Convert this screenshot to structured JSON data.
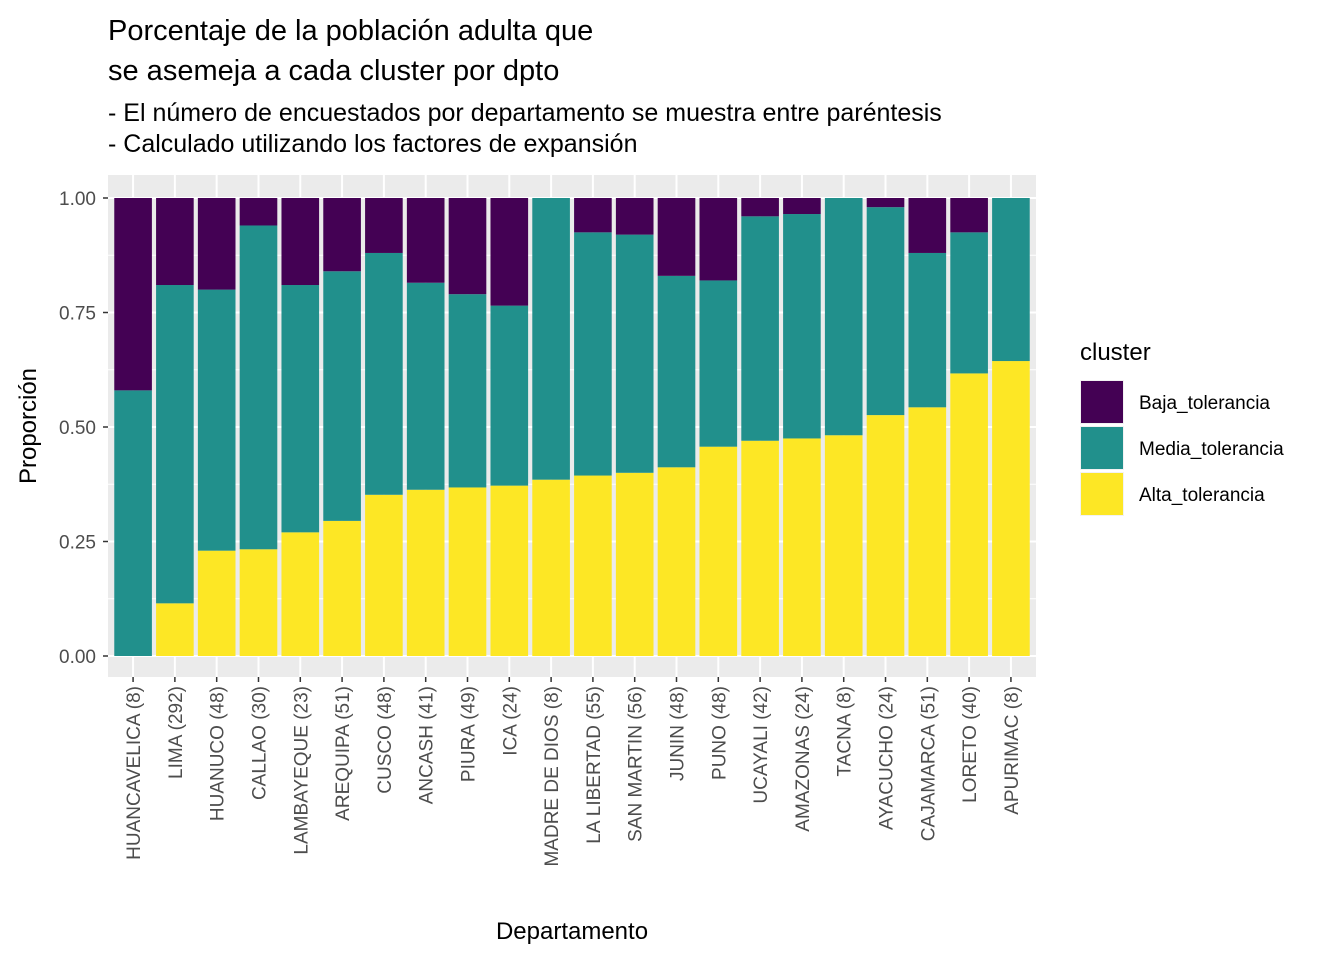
{
  "chart_data": {
    "type": "bar",
    "stacked": true,
    "title_lines": [
      "Porcentaje de la población adulta que",
      "se asemeja a cada cluster por dpto"
    ],
    "subtitle_lines": [
      "- El número de encuestados por departamento se muestra entre paréntesis",
      "- Calculado utilizando los factores de expansión"
    ],
    "xlabel": "Departamento",
    "ylabel": "Proporción",
    "ylim": [
      0,
      1
    ],
    "yticks": [
      0,
      0.25,
      0.5,
      0.75,
      1
    ],
    "ytick_labels": [
      "0.00",
      "0.25",
      "0.50",
      "0.75",
      "1.00"
    ],
    "grid": true,
    "legend": {
      "title": "cluster",
      "position": "right"
    },
    "categories": [
      "HUANCAVELICA (8)",
      "LIMA (292)",
      "HUANUCO (48)",
      "CALLAO (30)",
      "LAMBAYEQUE (23)",
      "AREQUIPA (51)",
      "CUSCO (48)",
      "ANCASH (41)",
      "PIURA (49)",
      "ICA (24)",
      "MADRE DE DIOS (8)",
      "LA LIBERTAD (55)",
      "SAN MARTIN (56)",
      "JUNIN (48)",
      "PUNO (48)",
      "UCAYALI (42)",
      "AMAZONAS (24)",
      "TACNA (8)",
      "AYACUCHO (24)",
      "CAJAMARCA (51)",
      "LORETO (40)",
      "APURIMAC (8)"
    ],
    "series": [
      {
        "name": "Baja_tolerancia",
        "color": "#440154",
        "values": [
          0.42,
          0.19,
          0.2,
          0.06,
          0.19,
          0.16,
          0.12,
          0.185,
          0.21,
          0.235,
          0.0,
          0.075,
          0.08,
          0.17,
          0.18,
          0.04,
          0.035,
          0.0,
          0.02,
          0.12,
          0.075,
          0.0
        ]
      },
      {
        "name": "Media_tolerancia",
        "color": "#21908C",
        "values": [
          0.58,
          0.695,
          0.57,
          0.707,
          0.54,
          0.545,
          0.528,
          0.452,
          0.422,
          0.393,
          0.615,
          0.531,
          0.52,
          0.418,
          0.363,
          0.49,
          0.49,
          0.518,
          0.454,
          0.337,
          0.308,
          0.356
        ]
      },
      {
        "name": "Alta_tolerancia",
        "color": "#FDE725",
        "values": [
          0.0,
          0.115,
          0.23,
          0.233,
          0.27,
          0.295,
          0.352,
          0.363,
          0.368,
          0.372,
          0.385,
          0.394,
          0.4,
          0.412,
          0.457,
          0.47,
          0.475,
          0.482,
          0.526,
          0.543,
          0.617,
          0.644
        ]
      }
    ]
  }
}
